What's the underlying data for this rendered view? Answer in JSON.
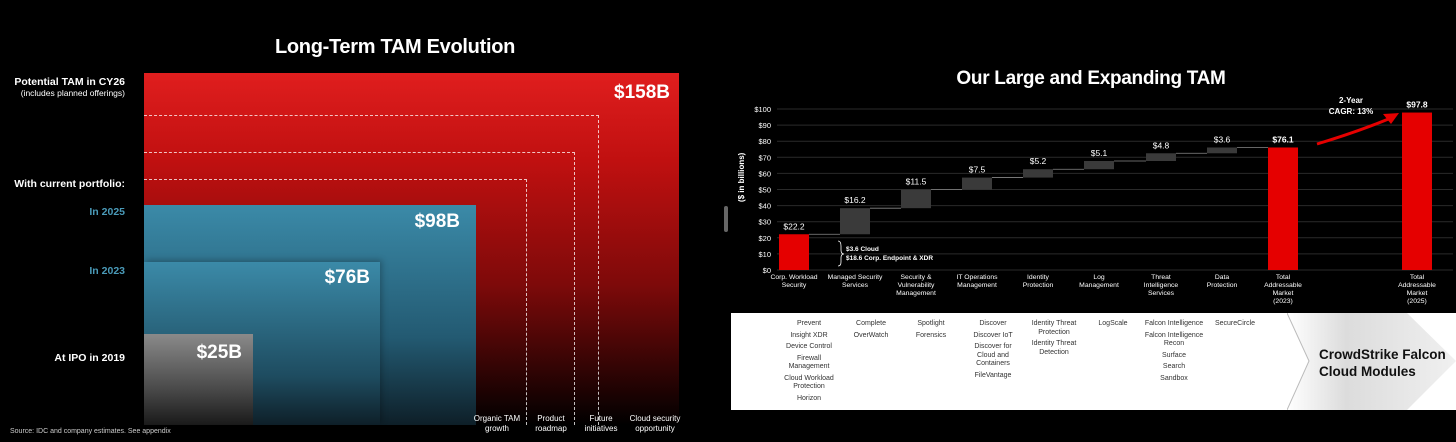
{
  "left_slide": {
    "title": "Long-Term TAM Evolution",
    "row_labels": {
      "potential_main": "Potential TAM in CY26",
      "potential_sub": "(includes planned offerings)",
      "current_main": "With current portfolio:",
      "in_2025": "In 2025",
      "in_2023": "In 2023",
      "ipo": "At IPO in 2019"
    },
    "source": "Source: IDC and company estimates. See appendix"
  },
  "right_slide": {
    "title": "Our Large and Expanding TAM",
    "callout_cloud": "$3.6 Cloud",
    "callout_endpoint": "$18.6 Corp. Endpoint & XDR",
    "cagr_label_1": "2-Year",
    "cagr_label_2": "CAGR: 13%",
    "modules_title_1": "CrowdStrike Falcon",
    "modules_title_2": "Cloud Modules",
    "modules": [
      [
        "Prevent",
        "Insight XDR",
        "Device Control",
        "Firewall Management",
        "Cloud Workload Protection",
        "Horizon"
      ],
      [
        "Complete",
        "OverWatch"
      ],
      [
        "Spotlight",
        "Forensics"
      ],
      [
        "Discover",
        "Discover IoT",
        "Discover for Cloud and Containers",
        "FileVantage"
      ],
      [
        "Identity Threat Protection",
        "Identity Threat Detection"
      ],
      [
        "LogScale"
      ],
      [
        "Falcon Intelligence",
        "Falcon Intelligence Recon",
        "Surface",
        "Search",
        "Sandbox"
      ],
      [
        "SecureCircle"
      ]
    ]
  },
  "colors": {
    "red": "#e50000",
    "blue": "#3b8aa8",
    "gray_bar": "#3a3a3a"
  },
  "chart_data": [
    {
      "type": "bar",
      "title": "Long-Term TAM Evolution",
      "categories": [
        "At IPO in 2019",
        "In 2023",
        "In 2025",
        "Potential TAM in CY26"
      ],
      "values": [
        25,
        76,
        98,
        158
      ],
      "value_labels": [
        "$25B",
        "$76B",
        "$98B",
        "$158B"
      ],
      "unit": "$B",
      "growth_drivers": [
        "Organic TAM growth",
        "Product roadmap",
        "Future initiatives",
        "Cloud security opportunity"
      ]
    },
    {
      "type": "bar",
      "subtype": "waterfall",
      "title": "Our Large and Expanding TAM",
      "ylabel": "($ in billions)",
      "ylim": [
        0,
        100
      ],
      "yticks": [
        "$0",
        "$10",
        "$20",
        "$30",
        "$40",
        "$50",
        "$60",
        "$70",
        "$80",
        "$90",
        "$100"
      ],
      "categories": [
        "Corp. Workload Security",
        "Managed Security Services",
        "Security & Vulnerability Management",
        "IT Operations Management",
        "Identity Protection",
        "Log Management",
        "Threat Intelligence Services",
        "Data Protection",
        "Total Addressable Market (2023)",
        "Total Addressable Market (2025)"
      ],
      "category_lines": [
        [
          "Corp. Workload",
          "Security"
        ],
        [
          "Managed Security",
          "Services"
        ],
        [
          "Security &",
          "Vulnerability",
          "Management"
        ],
        [
          "IT Operations",
          "Management"
        ],
        [
          "Identity",
          "Protection"
        ],
        [
          "Log",
          "Management"
        ],
        [
          "Threat",
          "Intelligence",
          "Services"
        ],
        [
          "Data",
          "Protection"
        ],
        [
          "Total",
          "Addressable",
          "Market",
          "(2023)"
        ],
        [
          "Total",
          "Addressable",
          "Market",
          "(2025)"
        ]
      ],
      "values": [
        22.2,
        16.2,
        11.5,
        7.5,
        5.2,
        5.1,
        4.8,
        3.6,
        76.1,
        97.8
      ],
      "value_labels": [
        "$22.2",
        "$16.2",
        "$11.5",
        "$7.5",
        "$5.2",
        "$5.1",
        "$4.8",
        "$3.6",
        "$76.1",
        "$97.8"
      ],
      "bar_kinds": [
        "base",
        "step",
        "step",
        "step",
        "step",
        "step",
        "step",
        "step",
        "total",
        "total"
      ]
    }
  ]
}
